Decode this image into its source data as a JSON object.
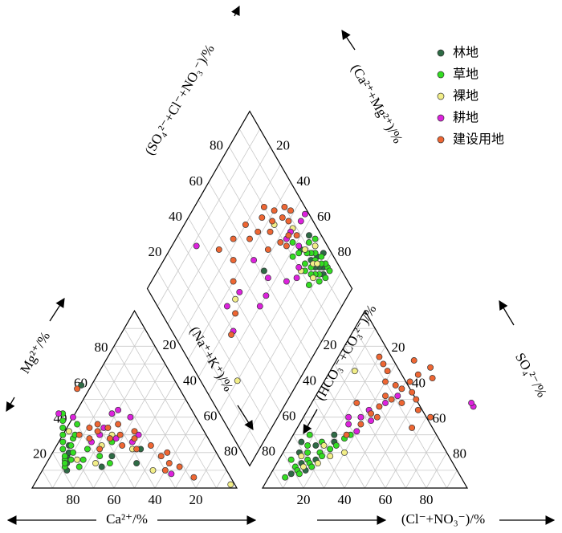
{
  "chart_data": {
    "type": "scatter",
    "subtype": "piper-diagram",
    "legend_position": "top-right",
    "series": [
      {
        "name": "林地",
        "color": "#2e6b45"
      },
      {
        "name": "草地",
        "color": "#33dd22"
      },
      {
        "name": "裸地",
        "color": "#f2ee88"
      },
      {
        "name": "耕地",
        "color": "#dd22dd"
      },
      {
        "name": "建设用地",
        "color": "#ee6633"
      }
    ],
    "axes": {
      "cation_bottom": "Ca²⁺/%",
      "cation_left": "Mg²⁺/%",
      "cation_right": "(Na⁺+K⁺)/%",
      "anion_bottom": "(Cl⁻+NO₃⁻)/%",
      "anion_left": "(HCO₃⁻+CO₃²⁻)/%",
      "anion_right": "SO₄²⁻/%",
      "diamond_left": "(SO₄²⁻+Cl⁻+NO₃⁻)/%",
      "diamond_right": "(Ca²⁺+Mg²⁺)/%"
    },
    "ticks": {
      "cation_bottom": [
        "80",
        "60",
        "40",
        "20"
      ],
      "cation_left": [
        "20",
        "40",
        "60",
        "80"
      ],
      "cation_right": [
        "20",
        "40",
        "60",
        "80"
      ],
      "anion_bottom": [
        "20",
        "40",
        "60",
        "80"
      ],
      "anion_left": [
        "80",
        "60",
        "40",
        "20"
      ],
      "anion_right": [
        "80",
        "60",
        "40",
        "20"
      ],
      "diamond_left": [
        "20",
        "40",
        "60",
        "80"
      ],
      "diamond_right": [
        "80",
        "60",
        "40",
        "20"
      ]
    },
    "cation_points": [
      {
        "s": 0,
        "ca": 74,
        "mg": 18
      },
      {
        "s": 0,
        "ca": 76,
        "mg": 14
      },
      {
        "s": 0,
        "ca": 72,
        "mg": 20
      },
      {
        "s": 0,
        "ca": 47,
        "mg": 58
      },
      {
        "s": 0,
        "ca": 70,
        "mg": 24
      },
      {
        "s": 0,
        "ca": 36,
        "mg": 22
      },
      {
        "s": 0,
        "ca": 42,
        "mg": 14
      },
      {
        "s": 0,
        "ca": 60,
        "mg": 12
      },
      {
        "s": 0,
        "ca": 78,
        "mg": 10
      },
      {
        "s": 0,
        "ca": 52,
        "mg": 18
      },
      {
        "s": 1,
        "ca": 78,
        "mg": 12
      },
      {
        "s": 1,
        "ca": 76,
        "mg": 16
      },
      {
        "s": 1,
        "ca": 74,
        "mg": 22
      },
      {
        "s": 1,
        "ca": 72,
        "mg": 26
      },
      {
        "s": 1,
        "ca": 70,
        "mg": 30
      },
      {
        "s": 1,
        "ca": 68,
        "mg": 34
      },
      {
        "s": 1,
        "ca": 66,
        "mg": 38
      },
      {
        "s": 1,
        "ca": 64,
        "mg": 42
      },
      {
        "s": 1,
        "ca": 70,
        "mg": 20
      },
      {
        "s": 1,
        "ca": 73,
        "mg": 16
      },
      {
        "s": 1,
        "ca": 69,
        "mg": 24
      },
      {
        "s": 1,
        "ca": 66,
        "mg": 28
      },
      {
        "s": 1,
        "ca": 62,
        "mg": 22
      },
      {
        "s": 1,
        "ca": 58,
        "mg": 18
      },
      {
        "s": 1,
        "ca": 55,
        "mg": 14
      },
      {
        "s": 1,
        "ca": 75,
        "mg": 18
      },
      {
        "s": 1,
        "ca": 77,
        "mg": 14
      },
      {
        "s": 1,
        "ca": 71,
        "mg": 12
      },
      {
        "s": 1,
        "ca": 67,
        "mg": 16
      },
      {
        "s": 1,
        "ca": 64,
        "mg": 30
      },
      {
        "s": 1,
        "ca": 60,
        "mg": 36
      },
      {
        "s": 1,
        "ca": 48,
        "mg": 26
      },
      {
        "s": 2,
        "ca": 70,
        "mg": 16
      },
      {
        "s": 2,
        "ca": 66,
        "mg": 32
      },
      {
        "s": 2,
        "ca": 54,
        "mg": 24
      },
      {
        "s": 2,
        "ca": 62,
        "mg": 14
      },
      {
        "s": 2,
        "ca": 46,
        "mg": 30
      },
      {
        "s": 2,
        "ca": 36,
        "mg": 10
      },
      {
        "s": 2,
        "ca": 40,
        "mg": 22
      },
      {
        "s": 2,
        "ca": 2,
        "mg": 2
      },
      {
        "s": 3,
        "ca": 66,
        "mg": 42
      },
      {
        "s": 3,
        "ca": 60,
        "mg": 40
      },
      {
        "s": 3,
        "ca": 52,
        "mg": 30
      },
      {
        "s": 3,
        "ca": 48,
        "mg": 34
      },
      {
        "s": 3,
        "ca": 45,
        "mg": 28
      },
      {
        "s": 3,
        "ca": 40,
        "mg": 42
      },
      {
        "s": 3,
        "ca": 38,
        "mg": 26
      },
      {
        "s": 3,
        "ca": 33,
        "mg": 30
      },
      {
        "s": 3,
        "ca": 58,
        "mg": 26
      },
      {
        "s": 3,
        "ca": 36,
        "mg": 44
      },
      {
        "s": 3,
        "ca": 28,
        "mg": 8
      },
      {
        "s": 3,
        "ca": 32,
        "mg": 40
      },
      {
        "s": 4,
        "ca": 62,
        "mg": 30
      },
      {
        "s": 4,
        "ca": 58,
        "mg": 28
      },
      {
        "s": 4,
        "ca": 55,
        "mg": 34
      },
      {
        "s": 4,
        "ca": 52,
        "mg": 32
      },
      {
        "s": 4,
        "ca": 50,
        "mg": 36
      },
      {
        "s": 4,
        "ca": 48,
        "mg": 28
      },
      {
        "s": 4,
        "ca": 46,
        "mg": 34
      },
      {
        "s": 4,
        "ca": 44,
        "mg": 24
      },
      {
        "s": 4,
        "ca": 42,
        "mg": 30
      },
      {
        "s": 4,
        "ca": 40,
        "mg": 36
      },
      {
        "s": 4,
        "ca": 38,
        "mg": 22
      },
      {
        "s": 4,
        "ca": 36,
        "mg": 28
      },
      {
        "s": 4,
        "ca": 34,
        "mg": 32
      },
      {
        "s": 4,
        "ca": 30,
        "mg": 24
      },
      {
        "s": 4,
        "ca": 28,
        "mg": 18
      },
      {
        "s": 4,
        "ca": 26,
        "mg": 14
      },
      {
        "s": 4,
        "ca": 24,
        "mg": 20
      },
      {
        "s": 4,
        "ca": 22,
        "mg": 12
      },
      {
        "s": 4,
        "ca": 18,
        "mg": 6
      },
      {
        "s": 4,
        "ca": 50,
        "mg": 56
      },
      {
        "s": 4,
        "ca": 30,
        "mg": 10
      },
      {
        "s": 4,
        "ca": 56,
        "mg": 22
      }
    ],
    "anion_points": [
      {
        "s": 0,
        "cl": 10,
        "so4": 8
      },
      {
        "s": 0,
        "cl": 12,
        "so4": 14
      },
      {
        "s": 0,
        "cl": 8,
        "so4": 20
      },
      {
        "s": 0,
        "cl": 16,
        "so4": 10
      },
      {
        "s": 0,
        "cl": 6,
        "so4": 26
      },
      {
        "s": 0,
        "cl": 14,
        "so4": 24
      },
      {
        "s": 0,
        "cl": 18,
        "so4": 16
      },
      {
        "s": 0,
        "cl": 20,
        "so4": 30
      },
      {
        "s": 0,
        "cl": 22,
        "so4": 26
      },
      {
        "s": 1,
        "cl": 8,
        "so4": 6
      },
      {
        "s": 1,
        "cl": 10,
        "so4": 12
      },
      {
        "s": 1,
        "cl": 12,
        "so4": 10
      },
      {
        "s": 1,
        "cl": 14,
        "so4": 16
      },
      {
        "s": 1,
        "cl": 16,
        "so4": 14
      },
      {
        "s": 1,
        "cl": 18,
        "so4": 20
      },
      {
        "s": 1,
        "cl": 20,
        "so4": 18
      },
      {
        "s": 1,
        "cl": 22,
        "so4": 22
      },
      {
        "s": 1,
        "cl": 24,
        "so4": 24
      },
      {
        "s": 1,
        "cl": 12,
        "so4": 20
      },
      {
        "s": 1,
        "cl": 10,
        "so4": 24
      },
      {
        "s": 1,
        "cl": 8,
        "so4": 30
      },
      {
        "s": 1,
        "cl": 14,
        "so4": 8
      },
      {
        "s": 1,
        "cl": 18,
        "so4": 12
      },
      {
        "s": 1,
        "cl": 6,
        "so4": 16
      },
      {
        "s": 1,
        "cl": 26,
        "so4": 28
      },
      {
        "s": 1,
        "cl": 28,
        "so4": 30
      },
      {
        "s": 1,
        "cl": 16,
        "so4": 26
      },
      {
        "s": 2,
        "cl": 14,
        "so4": 12
      },
      {
        "s": 2,
        "cl": 18,
        "so4": 24
      },
      {
        "s": 2,
        "cl": 20,
        "so4": 14
      },
      {
        "s": 2,
        "cl": 24,
        "so4": 18
      },
      {
        "s": 2,
        "cl": 10,
        "so4": 18
      },
      {
        "s": 2,
        "cl": 30,
        "so4": 20
      },
      {
        "s": 2,
        "cl": 12,
        "so4": 66
      },
      {
        "s": 3,
        "cl": 24,
        "so4": 36
      },
      {
        "s": 3,
        "cl": 28,
        "so4": 40
      },
      {
        "s": 3,
        "cl": 30,
        "so4": 44
      },
      {
        "s": 3,
        "cl": 34,
        "so4": 38
      },
      {
        "s": 3,
        "cl": 36,
        "so4": 48
      },
      {
        "s": 3,
        "cl": 22,
        "so4": 40
      },
      {
        "s": 3,
        "cl": 40,
        "so4": 52
      },
      {
        "s": 3,
        "cl": 80,
        "so4": 46
      },
      {
        "s": 3,
        "cl": 78,
        "so4": 48
      },
      {
        "s": 3,
        "cl": 30,
        "so4": 32
      },
      {
        "s": 4,
        "cl": 26,
        "so4": 30
      },
      {
        "s": 4,
        "cl": 30,
        "so4": 36
      },
      {
        "s": 4,
        "cl": 32,
        "so4": 42
      },
      {
        "s": 4,
        "cl": 34,
        "so4": 46
      },
      {
        "s": 4,
        "cl": 38,
        "so4": 50
      },
      {
        "s": 4,
        "cl": 40,
        "so4": 56
      },
      {
        "s": 4,
        "cl": 42,
        "so4": 60
      },
      {
        "s": 4,
        "cl": 44,
        "so4": 64
      },
      {
        "s": 4,
        "cl": 36,
        "so4": 58
      },
      {
        "s": 4,
        "cl": 30,
        "so4": 60
      },
      {
        "s": 4,
        "cl": 28,
        "so4": 66
      },
      {
        "s": 4,
        "cl": 24,
        "so4": 70
      },
      {
        "s": 4,
        "cl": 20,
        "so4": 74
      },
      {
        "s": 4,
        "cl": 46,
        "so4": 54
      },
      {
        "s": 4,
        "cl": 50,
        "so4": 50
      },
      {
        "s": 4,
        "cl": 52,
        "so4": 62
      },
      {
        "s": 4,
        "cl": 54,
        "so4": 44
      },
      {
        "s": 4,
        "cl": 62,
        "so4": 40
      },
      {
        "s": 4,
        "cl": 56,
        "so4": 34
      },
      {
        "s": 4,
        "cl": 36,
        "so4": 40
      },
      {
        "s": 4,
        "cl": 34,
        "so4": 52
      },
      {
        "s": 4,
        "cl": 44,
        "so4": 48
      },
      {
        "s": 4,
        "cl": 22,
        "so4": 48
      },
      {
        "s": 4,
        "cl": 38,
        "so4": 72
      },
      {
        "s": 4,
        "cl": 48,
        "so4": 68
      }
    ],
    "diamond_points": [
      {
        "s": 0,
        "anion": 20,
        "cation": 92
      },
      {
        "s": 0,
        "anion": 22,
        "cation": 90
      },
      {
        "s": 0,
        "anion": 24,
        "cation": 88
      },
      {
        "s": 0,
        "anion": 18,
        "cation": 90
      },
      {
        "s": 0,
        "anion": 26,
        "cation": 92
      },
      {
        "s": 0,
        "anion": 28,
        "cation": 88
      },
      {
        "s": 0,
        "anion": 36,
        "cation": 86
      },
      {
        "s": 0,
        "anion": 36,
        "cation": 94
      },
      {
        "s": 0,
        "anion": 24,
        "cation": 96
      },
      {
        "s": 0,
        "anion": 48,
        "cation": 62
      },
      {
        "s": 1,
        "anion": 18,
        "cation": 94
      },
      {
        "s": 1,
        "anion": 20,
        "cation": 94
      },
      {
        "s": 1,
        "anion": 22,
        "cation": 92
      },
      {
        "s": 1,
        "anion": 24,
        "cation": 94
      },
      {
        "s": 1,
        "anion": 26,
        "cation": 90
      },
      {
        "s": 1,
        "anion": 28,
        "cation": 92
      },
      {
        "s": 1,
        "anion": 30,
        "cation": 90
      },
      {
        "s": 1,
        "anion": 32,
        "cation": 88
      },
      {
        "s": 1,
        "anion": 20,
        "cation": 88
      },
      {
        "s": 1,
        "anion": 22,
        "cation": 86
      },
      {
        "s": 1,
        "anion": 16,
        "cation": 90
      },
      {
        "s": 1,
        "anion": 26,
        "cation": 86
      },
      {
        "s": 1,
        "anion": 30,
        "cation": 84
      },
      {
        "s": 1,
        "anion": 18,
        "cation": 86
      },
      {
        "s": 1,
        "anion": 34,
        "cation": 92
      },
      {
        "s": 1,
        "anion": 24,
        "cation": 84
      },
      {
        "s": 1,
        "anion": 28,
        "cation": 82
      },
      {
        "s": 1,
        "anion": 36,
        "cation": 84
      },
      {
        "s": 1,
        "anion": 42,
        "cation": 84
      },
      {
        "s": 1,
        "anion": 38,
        "cation": 80
      },
      {
        "s": 1,
        "anion": 22,
        "cation": 80
      },
      {
        "s": 1,
        "anion": 16,
        "cation": 94
      },
      {
        "s": 1,
        "anion": 32,
        "cation": 96
      },
      {
        "s": 2,
        "anion": 26,
        "cation": 88
      },
      {
        "s": 2,
        "anion": 30,
        "cation": 94
      },
      {
        "s": 2,
        "anion": 34,
        "cation": 88
      },
      {
        "s": 2,
        "anion": 24,
        "cation": 90
      },
      {
        "s": 2,
        "anion": 22,
        "cation": 84
      },
      {
        "s": 2,
        "anion": 46,
        "cation": 88
      },
      {
        "s": 2,
        "anion": 56,
        "cation": 80
      },
      {
        "s": 2,
        "anion": 30,
        "cation": 80
      },
      {
        "s": 2,
        "anion": 54,
        "cation": 40
      },
      {
        "s": 2,
        "anion": 30,
        "cation": 18
      },
      {
        "s": 3,
        "anion": 44,
        "cation": 98
      },
      {
        "s": 3,
        "anion": 44,
        "cation": 94
      },
      {
        "s": 3,
        "anion": 46,
        "cation": 86
      },
      {
        "s": 3,
        "anion": 38,
        "cation": 86
      },
      {
        "s": 3,
        "anion": 32,
        "cation": 80
      },
      {
        "s": 3,
        "anion": 30,
        "cation": 76
      },
      {
        "s": 3,
        "anion": 34,
        "cation": 70
      },
      {
        "s": 3,
        "anion": 44,
        "cation": 62
      },
      {
        "s": 3,
        "anion": 56,
        "cation": 60
      },
      {
        "s": 3,
        "anion": 40,
        "cation": 56
      },
      {
        "s": 3,
        "anion": 40,
        "cation": 50
      },
      {
        "s": 3,
        "anion": 54,
        "cation": 44
      },
      {
        "s": 3,
        "anion": 56,
        "cation": 34
      },
      {
        "s": 3,
        "anion": 46,
        "cation": 30
      },
      {
        "s": 3,
        "anion": 88,
        "cation": 36
      },
      {
        "s": 3,
        "anion": 46,
        "cation": 82
      },
      {
        "s": 4,
        "anion": 52,
        "cation": 92
      },
      {
        "s": 4,
        "anion": 56,
        "cation": 90
      },
      {
        "s": 4,
        "anion": 50,
        "cation": 88
      },
      {
        "s": 4,
        "anion": 54,
        "cation": 86
      },
      {
        "s": 4,
        "anion": 60,
        "cation": 84
      },
      {
        "s": 4,
        "anion": 46,
        "cation": 84
      },
      {
        "s": 4,
        "anion": 58,
        "cation": 80
      },
      {
        "s": 4,
        "anion": 44,
        "cation": 80
      },
      {
        "s": 4,
        "anion": 48,
        "cation": 78
      },
      {
        "s": 4,
        "anion": 56,
        "cation": 76
      },
      {
        "s": 4,
        "anion": 64,
        "cation": 76
      },
      {
        "s": 4,
        "anion": 62,
        "cation": 70
      },
      {
        "s": 4,
        "anion": 52,
        "cation": 70
      },
      {
        "s": 4,
        "anion": 70,
        "cation": 66
      },
      {
        "s": 4,
        "anion": 64,
        "cation": 64
      },
      {
        "s": 4,
        "anion": 72,
        "cation": 56
      },
      {
        "s": 4,
        "anion": 66,
        "cation": 50
      },
      {
        "s": 4,
        "anion": 76,
        "cation": 46
      },
      {
        "s": 4,
        "anion": 60,
        "cation": 44
      },
      {
        "s": 4,
        "anion": 50,
        "cation": 36
      },
      {
        "s": 4,
        "anion": 46,
        "cation": 28
      },
      {
        "s": 4,
        "anion": 42,
        "cation": 88
      },
      {
        "s": 4,
        "anion": 66,
        "cation": 80
      }
    ]
  }
}
